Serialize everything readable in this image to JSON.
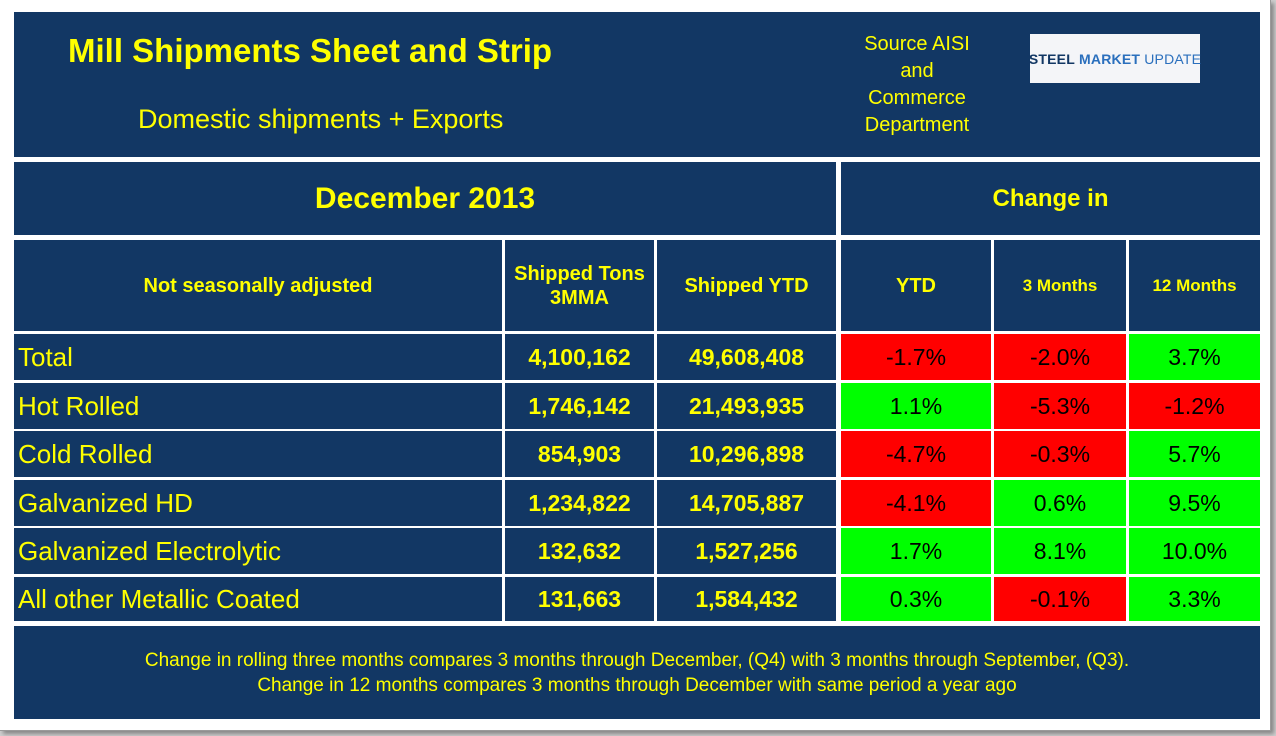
{
  "header": {
    "title": "Mill Shipments Sheet and Strip",
    "subtitle": "Domestic shipments + Exports",
    "source_lines": [
      "Source AISI",
      "and",
      "Commerce",
      "Department"
    ],
    "logo": {
      "part1": "STEEL",
      "part2": "MARKET",
      "part3": "UPDATE"
    }
  },
  "table": {
    "period": "December 2013",
    "change_in": "Change in",
    "columns": {
      "label": "Not seasonally adjusted",
      "shipped_3mma": [
        "Shipped Tons",
        "3MMA"
      ],
      "shipped_ytd": "Shipped YTD",
      "ytd": "YTD",
      "three_months": "3 Months",
      "twelve_months": "12 Months"
    },
    "rows": [
      {
        "label": "Total",
        "shipped_3mma": "4,100,162",
        "shipped_ytd": "49,608,408",
        "ytd": "-1.7%",
        "three_months": "-2.0%",
        "twelve_months": "3.7%"
      },
      {
        "label": "Hot Rolled",
        "shipped_3mma": "1,746,142",
        "shipped_ytd": "21,493,935",
        "ytd": "1.1%",
        "three_months": "-5.3%",
        "twelve_months": "-1.2%"
      },
      {
        "label": "Cold Rolled",
        "shipped_3mma": "854,903",
        "shipped_ytd": "10,296,898",
        "ytd": "-4.7%",
        "three_months": "-0.3%",
        "twelve_months": "5.7%"
      },
      {
        "label": "Galvanized HD",
        "shipped_3mma": "1,234,822",
        "shipped_ytd": "14,705,887",
        "ytd": "-4.1%",
        "three_months": "0.6%",
        "twelve_months": "9.5%"
      },
      {
        "label": "Galvanized Electrolytic",
        "shipped_3mma": "132,632",
        "shipped_ytd": "1,527,256",
        "ytd": "1.7%",
        "three_months": "8.1%",
        "twelve_months": "10.0%"
      },
      {
        "label": "All other Metallic Coated",
        "shipped_3mma": "131,663",
        "shipped_ytd": "1,584,432",
        "ytd": "0.3%",
        "three_months": "-0.1%",
        "twelve_months": "3.3%"
      }
    ]
  },
  "footer": {
    "line1": "Change in rolling three months compares 3 months through December, (Q4) with 3 months through September, (Q3).",
    "line2": "Change in 12 months compares 3 months through December with same period a year ago"
  },
  "colors": {
    "panel": "#123764",
    "text": "#ffff00",
    "negative": "#ff0000",
    "positive": "#00ff00"
  }
}
